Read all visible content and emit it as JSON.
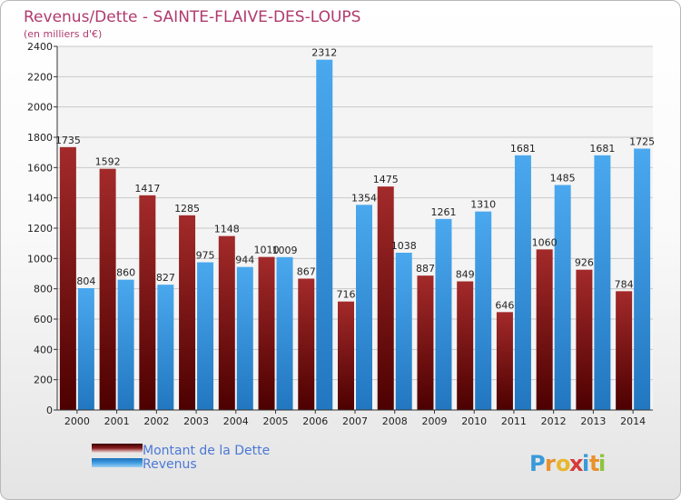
{
  "chart_data": {
    "type": "bar",
    "title": "Revenus/Dette - SAINTE-FLAIVE-DES-LOUPS",
    "subtitle": "(en milliers d'€)",
    "categories": [
      "2000",
      "2001",
      "2002",
      "2003",
      "2004",
      "2005",
      "2006",
      "2007",
      "2008",
      "2009",
      "2010",
      "2011",
      "2012",
      "2013",
      "2014"
    ],
    "series": [
      {
        "name": "Montant de la Dette",
        "color": "#8b1e1e",
        "values": [
          1735,
          1592,
          1417,
          1285,
          1148,
          1010,
          867,
          716,
          1475,
          887,
          849,
          646,
          1060,
          926,
          784
        ],
        "labels": [
          "1735",
          "1592",
          "1417",
          "1285",
          "1148",
          "1010",
          "867",
          "716",
          "1475",
          "887",
          "849",
          "646",
          "1060",
          "926",
          "784"
        ]
      },
      {
        "name": "Revenus",
        "color": "#3f9be0",
        "values": [
          804,
          860,
          827,
          975,
          944,
          1009,
          2312,
          1354,
          1038,
          1261,
          1310,
          1681,
          1485,
          1681,
          1725
        ],
        "labels": [
          "804",
          "860",
          "827",
          "975",
          "944",
          "1009",
          "2312",
          "1354",
          "1038",
          "1261",
          "1310",
          "1681",
          "1485",
          "1681",
          "1725"
        ]
      }
    ],
    "ylim": [
      0,
      2400
    ],
    "yticks": [
      0,
      200,
      400,
      600,
      800,
      1000,
      1200,
      1400,
      1600,
      1800,
      2000,
      2200,
      2400
    ],
    "grid": true,
    "legend_position": "bottom-left"
  },
  "logo": {
    "letters": [
      "P",
      "r",
      "o",
      "x",
      "i",
      "t",
      "i"
    ],
    "colors": [
      "#3a9ad9",
      "#e8922c",
      "#e8b72c",
      "#d63a3a",
      "#3a9ad9",
      "#e8922c",
      "#8cc43a"
    ]
  }
}
